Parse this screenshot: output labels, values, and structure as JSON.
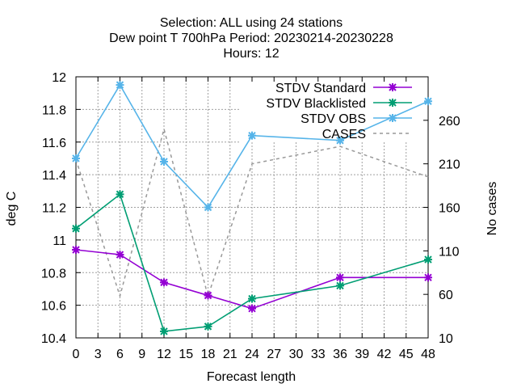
{
  "chart_data": {
    "type": "line",
    "title_lines": [
      "Selection: ALL using    24 stations",
      "Dew point T 700hPa   Period: 20230214-20230228",
      "Hours:  12"
    ],
    "xlabel": "Forecast length",
    "ylabel": "deg C",
    "y2label": "No cases",
    "xlim": [
      0,
      48
    ],
    "ylim": [
      10.4,
      12
    ],
    "y2lim": [
      10,
      310
    ],
    "x_ticks": [
      "0",
      "3",
      "6",
      "9",
      "12",
      "15",
      "18",
      "21",
      "24",
      "27",
      "30",
      "33",
      "36",
      "39",
      "42",
      "45",
      "48"
    ],
    "y_ticks": [
      "10.4",
      "10.6",
      "10.8",
      "11",
      "11.2",
      "11.4",
      "11.6",
      "11.8",
      "12"
    ],
    "y2_ticks": [
      "10",
      "60",
      "110",
      "160",
      "210",
      "260"
    ],
    "grid": true,
    "legend_position": "top-right",
    "series": [
      {
        "name": "STDV Standard",
        "color": "#9400d3",
        "marker": "x",
        "axis": "y1",
        "x": [
          0,
          6,
          12,
          18,
          24,
          36,
          48
        ],
        "y": [
          10.94,
          10.91,
          10.74,
          10.66,
          10.58,
          10.77,
          10.77
        ]
      },
      {
        "name": "STDV Blacklisted",
        "color": "#009e73",
        "marker": "x",
        "axis": "y1",
        "x": [
          0,
          6,
          12,
          18,
          24,
          36,
          48
        ],
        "y": [
          11.07,
          11.28,
          10.44,
          10.47,
          10.64,
          10.72,
          10.88
        ]
      },
      {
        "name": "STDV OBS",
        "color": "#56b4e9",
        "marker": "x",
        "axis": "y1",
        "x": [
          0,
          6,
          12,
          18,
          24,
          36,
          48
        ],
        "y": [
          11.5,
          11.95,
          11.48,
          11.2,
          11.64,
          11.61,
          11.85
        ]
      },
      {
        "name": "CASES",
        "color": "#999999",
        "marker": "none",
        "dashed": true,
        "axis": "y2",
        "x": [
          0,
          6,
          12,
          18,
          24,
          36,
          48
        ],
        "y": [
          215,
          58,
          250,
          58,
          210,
          230,
          195
        ]
      }
    ]
  }
}
